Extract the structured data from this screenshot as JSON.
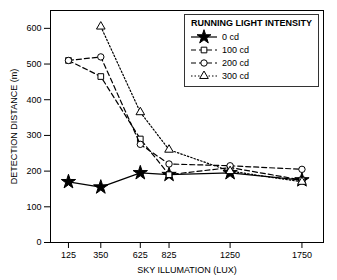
{
  "chart_data": {
    "type": "line",
    "title": "RUNNING LIGHT INTENSITY",
    "x_label": "SKY ILLUMATION (LUX)",
    "y_label": "DETECTION DISTANCE (m)",
    "x": [
      125,
      350,
      625,
      825,
      1250,
      1750
    ],
    "series": [
      {
        "name": "0 cd",
        "color": "black",
        "line_style": "solid",
        "marker": "star",
        "values": [
          170,
          155,
          195,
          190,
          195,
          175
        ]
      },
      {
        "name": "100 cd",
        "color": "black",
        "line_style": "dashed",
        "marker": "square",
        "values": [
          510,
          465,
          290,
          190,
          210,
          175
        ]
      },
      {
        "name": "200 cd",
        "color": "black",
        "line_style": "dashed",
        "marker": "circle",
        "values": [
          510,
          520,
          275,
          220,
          215,
          205
        ]
      },
      {
        "name": "300 cd",
        "color": "black",
        "line_style": "dotted",
        "marker": "triangle",
        "values": [
          null,
          605,
          365,
          260,
          200,
          170
        ]
      }
    ],
    "xlim": [
      0,
      1900
    ],
    "ylim": [
      0,
      650
    ],
    "xticks": [
      125,
      350,
      625,
      825,
      1250,
      1750
    ],
    "yticks": [
      0,
      100,
      200,
      300,
      400,
      500,
      600
    ],
    "grid": false,
    "legend": "upper right"
  }
}
